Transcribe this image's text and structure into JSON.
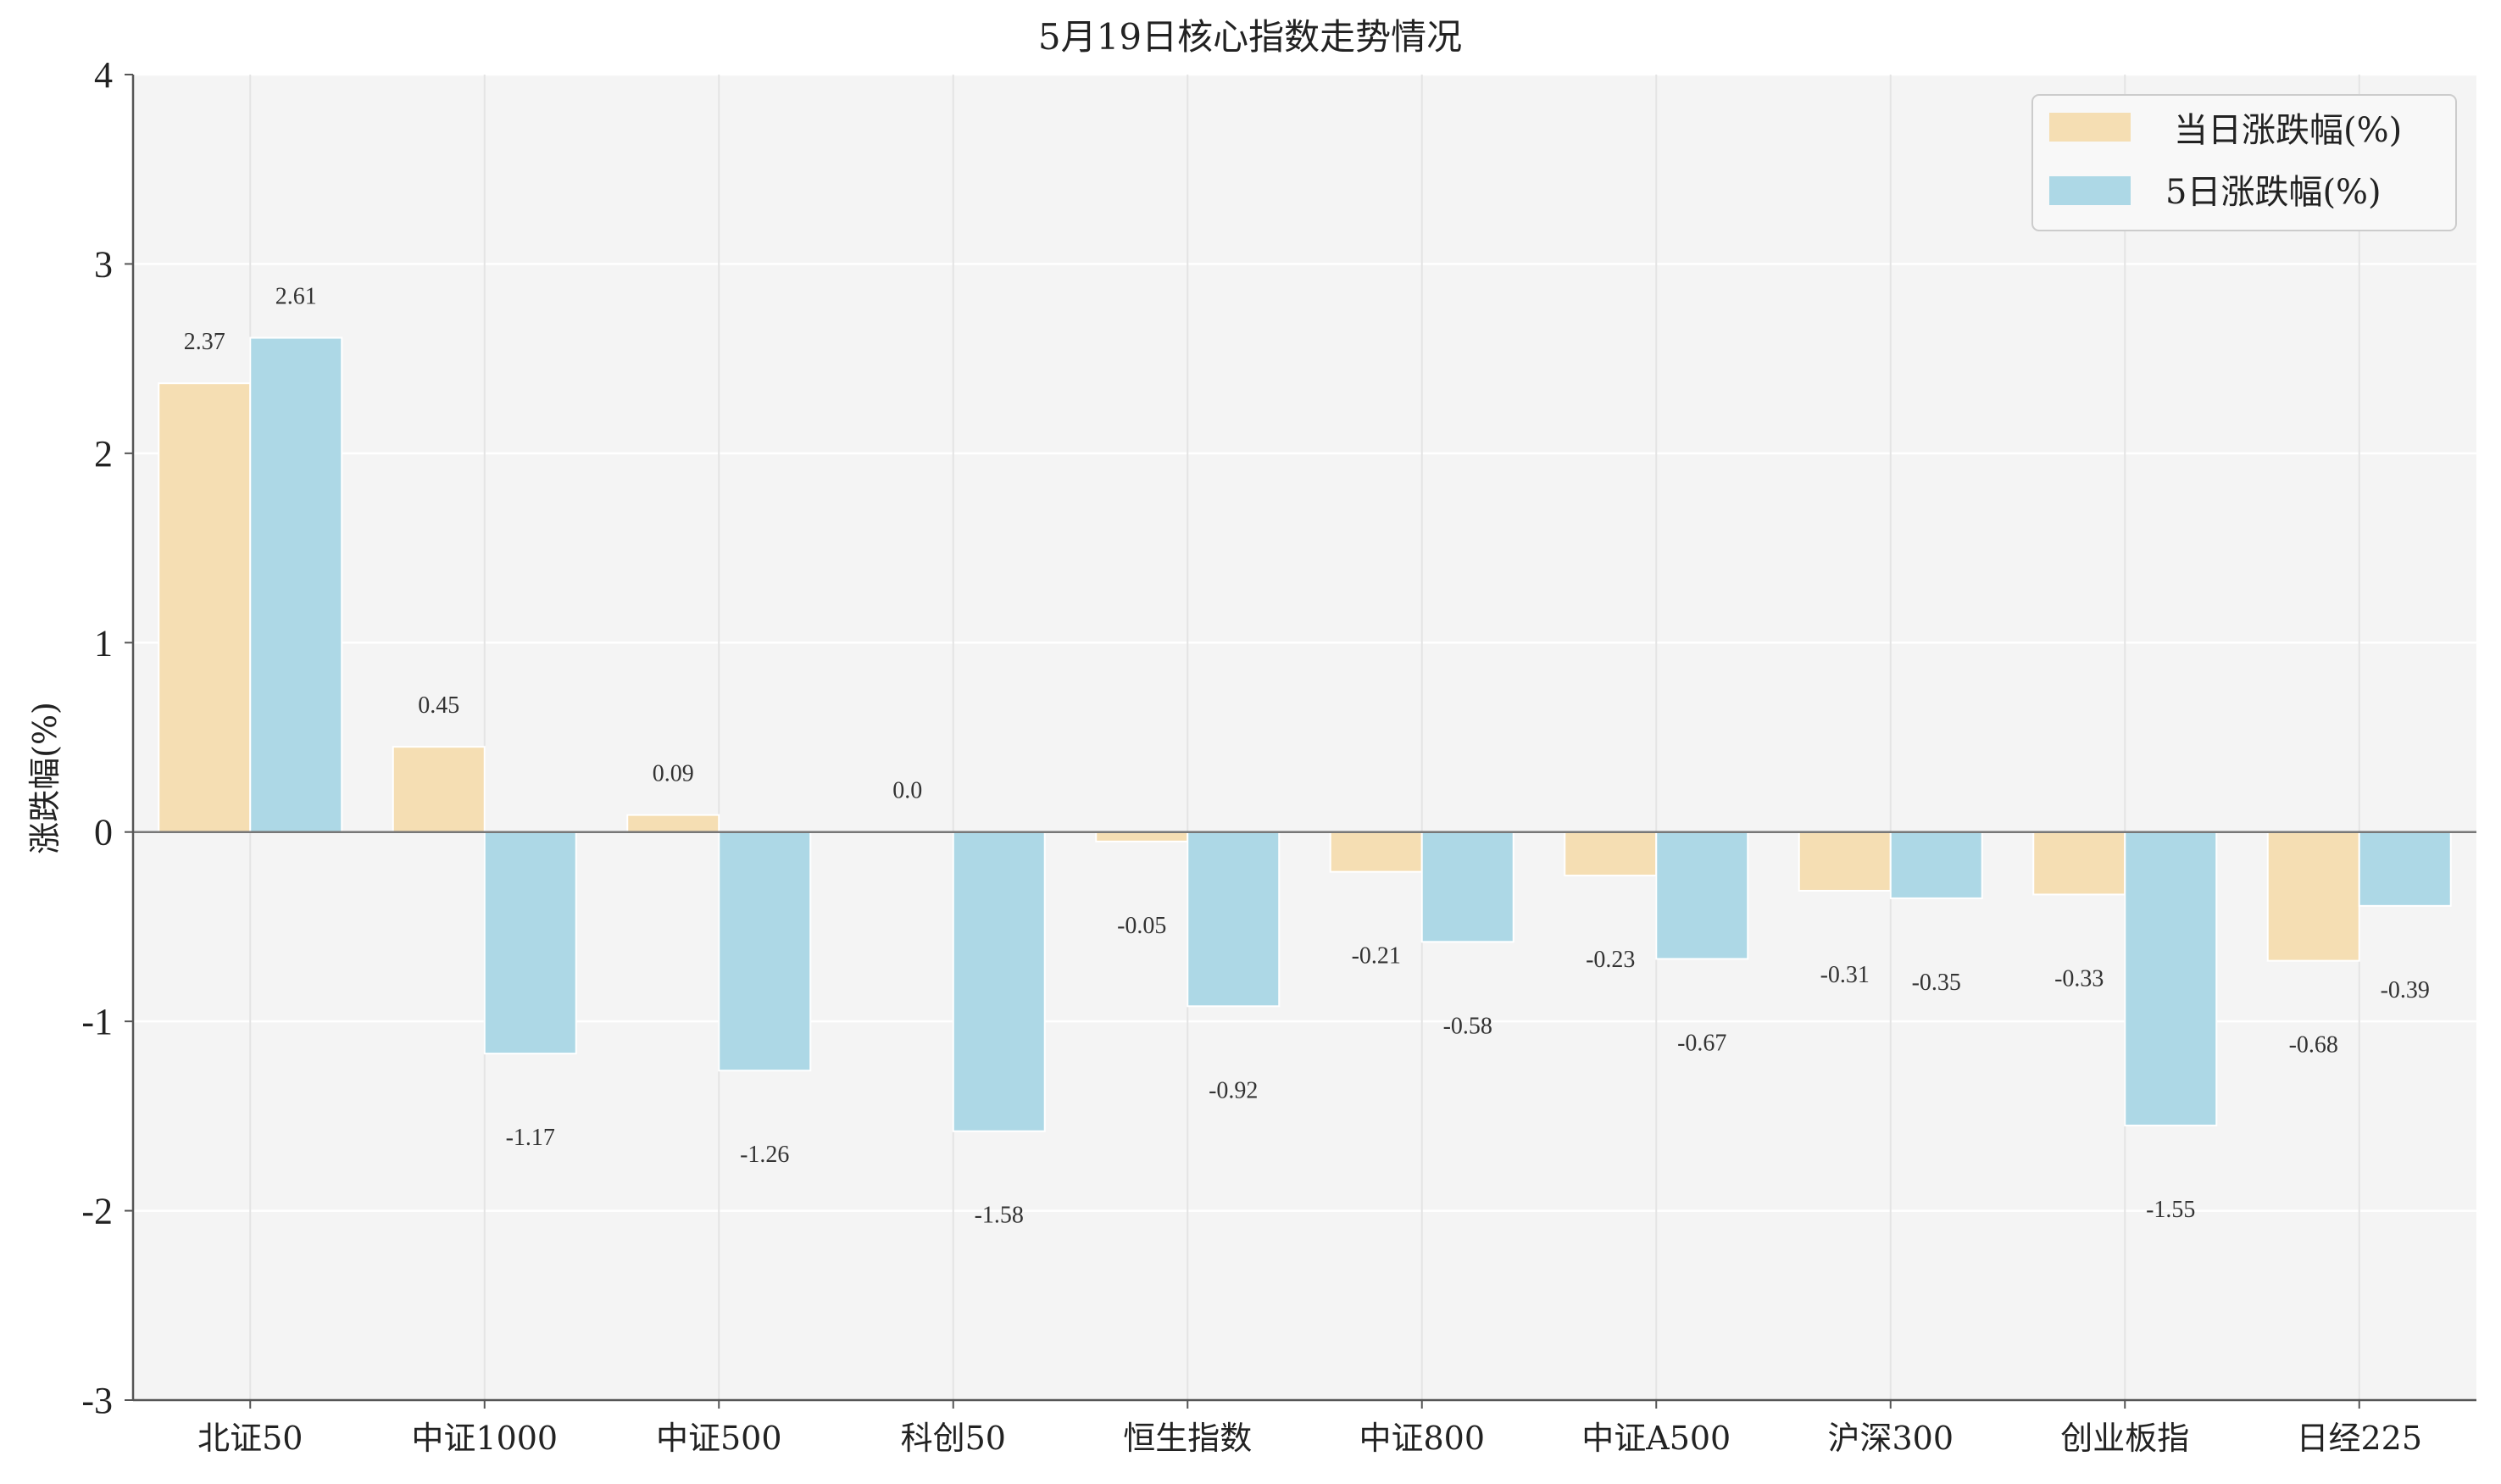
{
  "chart_data": {
    "type": "bar",
    "title": "5月19日核心指数走势情况",
    "xlabel": "",
    "ylabel": "涨跌幅(%)",
    "ylim": [
      -3,
      4
    ],
    "yticks": [
      -3,
      -2,
      -1,
      0,
      1,
      2,
      3,
      4
    ],
    "ytick_labels": [
      "-3",
      "-2",
      "-1",
      "0",
      "1",
      "2",
      "3",
      "4"
    ],
    "grid": true,
    "legend_position": "top-right",
    "categories": [
      "北证50",
      "中证1000",
      "中证500",
      "科创50",
      "恒生指数",
      "中证800",
      "中证A500",
      "沪深300",
      "创业板指",
      "日经225"
    ],
    "series": [
      {
        "name": "当日涨跌幅(%)",
        "color": "#f5deb3",
        "values": [
          2.37,
          0.45,
          0.09,
          0.0,
          -0.05,
          -0.21,
          -0.23,
          -0.31,
          -0.33,
          -0.68
        ],
        "labels": [
          "2.37",
          "0.45",
          "0.09",
          "0.0",
          "-0.05",
          "-0.21",
          "-0.23",
          "-0.31",
          "-0.33",
          "-0.68"
        ]
      },
      {
        "name": "5日涨跌幅(%)",
        "color": "#add8e6",
        "values": [
          2.61,
          -1.17,
          -1.26,
          -1.58,
          -0.92,
          -0.58,
          -0.67,
          -0.35,
          -1.55,
          -0.39
        ],
        "labels": [
          "2.61",
          "-1.17",
          "-1.26",
          "-1.58",
          "-0.92",
          "-0.58",
          "-0.67",
          "-0.35",
          "-1.55",
          "-0.39"
        ]
      }
    ]
  },
  "style": {
    "plot_bg": "#f4f4f4",
    "grid_color": "#ffffff",
    "vgrid_color": "#e4e4e4",
    "axis_color": "#555555",
    "zero_line_color": "#777777",
    "legend_border": "#cccccc"
  }
}
